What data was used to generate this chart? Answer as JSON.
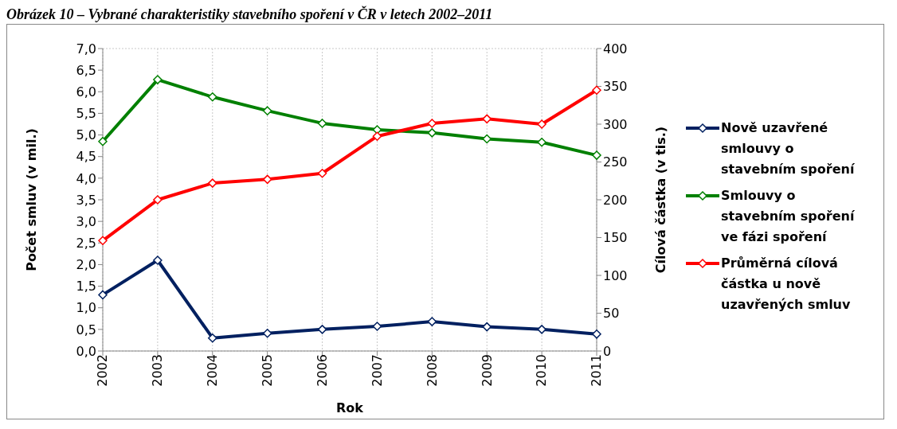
{
  "chart_data": {
    "type": "line",
    "title": "Obrázek 10 – Vybrané charakteristiky stavebního spoření v ČR v letech 2002–2011",
    "xlabel": "Rok",
    "ylabel": "Počet smluv (v mil.)",
    "y2label": "Cílová částka (v tis.)",
    "categories": [
      "2002",
      "2003",
      "2004",
      "2005",
      "2006",
      "2007",
      "2008",
      "2009",
      "2010",
      "2011"
    ],
    "series": [
      {
        "name": "Nově uzavřené smlouvy o stavebním spoření",
        "color": "#002060",
        "values": [
          1.3,
          2.1,
          0.3,
          0.41,
          0.5,
          0.57,
          0.68,
          0.56,
          0.5,
          0.39
        ]
      },
      {
        "name": "Smlouvy o stavebním spoření ve fázi spoření",
        "color": "#008000",
        "values": [
          4.85,
          6.28,
          5.88,
          5.56,
          5.27,
          5.12,
          5.05,
          4.91,
          4.83,
          4.53
        ]
      },
      {
        "name": "Průměrná cílová částka u nově uzavřených smluv",
        "color": "#ff0000",
        "axis": "y2",
        "values": [
          146,
          200,
          222,
          227,
          235,
          284,
          301,
          307,
          300,
          345
        ]
      }
    ],
    "ylim": [
      0,
      7
    ],
    "yticks": [
      {
        "value": 0,
        "label": "0,0"
      },
      {
        "value": 0.5,
        "label": "0,5"
      },
      {
        "value": 1,
        "label": "1,0"
      },
      {
        "value": 1.5,
        "label": "1,5"
      },
      {
        "value": 2,
        "label": "2,0"
      },
      {
        "value": 2.5,
        "label": "2,5"
      },
      {
        "value": 3,
        "label": "3,0"
      },
      {
        "value": 3.5,
        "label": "3,5"
      },
      {
        "value": 4,
        "label": "4,0"
      },
      {
        "value": 4.5,
        "label": "4,5"
      },
      {
        "value": 5,
        "label": "5,0"
      },
      {
        "value": 5.5,
        "label": "5,5"
      },
      {
        "value": 6,
        "label": "6,0"
      },
      {
        "value": 6.5,
        "label": "6,5"
      },
      {
        "value": 7,
        "label": "7,0"
      }
    ],
    "y2lim": [
      0,
      400
    ],
    "y2ticks": [
      0,
      50,
      100,
      150,
      200,
      250,
      300,
      350,
      400
    ],
    "grid": true,
    "legend": "right",
    "marker": "diamond",
    "line_style": "solid"
  }
}
